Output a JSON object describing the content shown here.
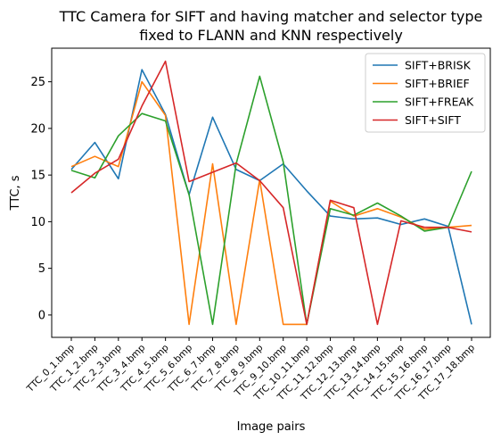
{
  "chart_data": {
    "type": "line",
    "title": "TTC Camera for SIFT and having matcher and selector type fixed to FLANN and KNN respectively",
    "title_lines": [
      "TTC Camera for SIFT and having matcher and selector type",
      "fixed to FLANN and KNN respectively"
    ],
    "xlabel": "Image pairs",
    "ylabel": "TTC, s",
    "categories": [
      "TTC_0_1.bmp",
      "TTC_1_2.bmp",
      "TTC_2_3.bmp",
      "TTC_3_4.bmp",
      "TTC_4_5.bmp",
      "TTC_5_6.bmp",
      "TTC_6_7.bmp",
      "TTC_7_8.bmp",
      "TTC_8_9.bmp",
      "TTC_9_10.bmp",
      "TTC_10_11.bmp",
      "TTC_11_12.bmp",
      "TTC_12_13.bmp",
      "TTC_13_14.bmp",
      "TTC_14_15.bmp",
      "TTC_15_16.bmp",
      "TTC_16_17.bmp",
      "TTC_17_18.bmp"
    ],
    "ylim": [
      -2.4,
      28.6
    ],
    "yticks": [
      0,
      5,
      10,
      15,
      20,
      25
    ],
    "grid": false,
    "legend_position": "top-right",
    "series": [
      {
        "name": "SIFT+BRISK",
        "color": "#1f77b4",
        "values": [
          15.6,
          18.5,
          14.6,
          26.3,
          21.5,
          12.9,
          21.2,
          15.6,
          14.4,
          16.2,
          13.3,
          10.6,
          10.3,
          10.4,
          9.7,
          10.3,
          9.5,
          -1.0
        ]
      },
      {
        "name": "SIFT+BRIEF",
        "color": "#ff7f0e",
        "values": [
          15.9,
          17.0,
          15.9,
          25.0,
          21.4,
          -1.0,
          16.2,
          -1.0,
          14.5,
          -1.0,
          -1.0,
          12.2,
          10.6,
          11.4,
          10.5,
          9.2,
          9.4,
          9.6
        ]
      },
      {
        "name": "SIFT+FREAK",
        "color": "#2ca02c",
        "values": [
          15.5,
          14.7,
          19.2,
          21.6,
          20.8,
          12.9,
          -1.0,
          16.2,
          25.6,
          16.4,
          -1.0,
          11.4,
          10.7,
          12.0,
          10.6,
          9.0,
          9.4,
          15.4
        ]
      },
      {
        "name": "SIFT+SIFT",
        "color": "#d62728",
        "values": [
          13.1,
          15.2,
          16.7,
          22.4,
          27.2,
          14.3,
          15.3,
          16.3,
          14.4,
          11.5,
          -1.0,
          12.3,
          11.5,
          -1.0,
          10.1,
          9.4,
          9.4,
          8.9
        ]
      }
    ]
  }
}
